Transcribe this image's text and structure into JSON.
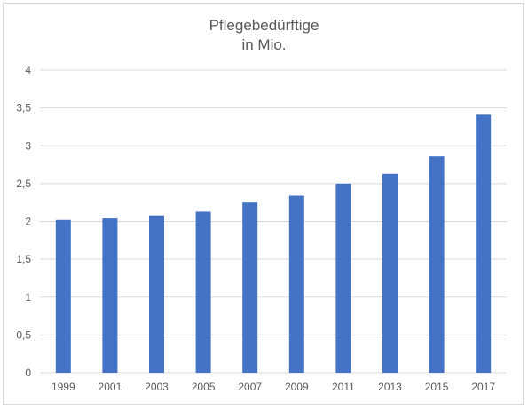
{
  "chart_data": {
    "type": "bar",
    "title_lines": [
      "Pflegebedürftige",
      "in Mio."
    ],
    "categories": [
      "1999",
      "2001",
      "2003",
      "2005",
      "2007",
      "2009",
      "2011",
      "2013",
      "2015",
      "2017"
    ],
    "values": [
      2.02,
      2.04,
      2.08,
      2.13,
      2.25,
      2.34,
      2.5,
      2.63,
      2.86,
      3.41
    ],
    "y_ticks": [
      "0",
      "0,5",
      "1",
      "1,5",
      "2",
      "2,5",
      "3",
      "3,5",
      "4"
    ],
    "ylim": [
      0,
      4
    ],
    "grid": true,
    "bar_color": "#4472c4",
    "grid_color": "#d9d9d9"
  }
}
